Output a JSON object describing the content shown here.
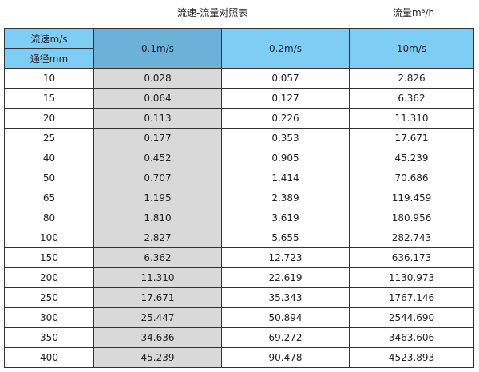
{
  "title": "流速-流量对照表",
  "unit": "流量m³/h",
  "header": {
    "velocity_label": "流速m/s",
    "diameter_label": "通径mm",
    "columns": [
      "0.1m/s",
      "0.2m/s",
      "10m/s"
    ]
  },
  "colors": {
    "header": "#7ecdf4",
    "header_highlight": "#6cb1d7",
    "column_highlight": "#d9d9d9"
  },
  "rows": [
    [
      "10",
      "0.028",
      "0.057",
      "2.826"
    ],
    [
      "15",
      "0.064",
      "0.127",
      "6.362"
    ],
    [
      "20",
      "0.113",
      "0.226",
      "11.310"
    ],
    [
      "25",
      "0.177",
      "0.353",
      "17.671"
    ],
    [
      "40",
      "0.452",
      "0.905",
      "45.239"
    ],
    [
      "50",
      "0.707",
      "1.414",
      "70.686"
    ],
    [
      "65",
      "1.195",
      "2.389",
      "119.459"
    ],
    [
      "80",
      "1.810",
      "3.619",
      "180.956"
    ],
    [
      "100",
      "2.827",
      "5.655",
      "282.743"
    ],
    [
      "150",
      "6.362",
      "12.723",
      "636.173"
    ],
    [
      "200",
      "11.310",
      "22.619",
      "1130.973"
    ],
    [
      "250",
      "17.671",
      "35.343",
      "1767.146"
    ],
    [
      "300",
      "25.447",
      "50.894",
      "2544.690"
    ],
    [
      "350",
      "34.636",
      "69.272",
      "3463.606"
    ],
    [
      "400",
      "45.239",
      "90.478",
      "4523.893"
    ]
  ]
}
